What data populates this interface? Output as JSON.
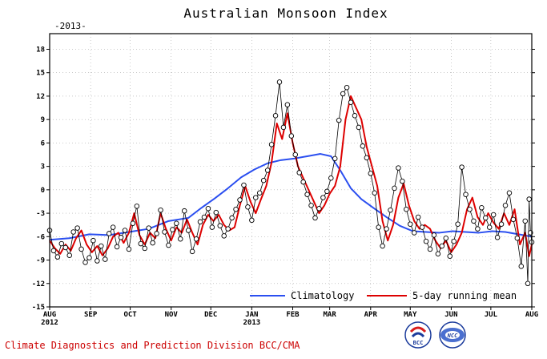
{
  "chart_data": {
    "type": "line",
    "title": "Australian Monsoon Index",
    "year_label": "-2013-",
    "xlabel": "",
    "ylabel": "",
    "ylim": [
      -15,
      20
    ],
    "y_ticks": [
      -15,
      -12,
      -9,
      -6,
      -3,
      0,
      3,
      6,
      9,
      12,
      15,
      18
    ],
    "x_ticks": [
      {
        "day": 0,
        "label": "AUG",
        "sub": "2012"
      },
      {
        "day": 31,
        "label": "SEP"
      },
      {
        "day": 61,
        "label": "OCT"
      },
      {
        "day": 92,
        "label": "NOV"
      },
      {
        "day": 122,
        "label": "DEC"
      },
      {
        "day": 153,
        "label": "JAN",
        "sub": "2013"
      },
      {
        "day": 184,
        "label": "FEB"
      },
      {
        "day": 212,
        "label": "MAR"
      },
      {
        "day": 243,
        "label": "APR"
      },
      {
        "day": 273,
        "label": "MAY"
      },
      {
        "day": 304,
        "label": "JUN"
      },
      {
        "day": 334,
        "label": "JUL"
      },
      {
        "day": 365,
        "label": "AUG"
      }
    ],
    "grid": true,
    "legend_position": "bottom-right",
    "daily_color": "#000000",
    "series": [
      {
        "name": "Climatology",
        "color": "#2b4ff0",
        "points": [
          [
            0,
            -6.4
          ],
          [
            15,
            -6.2
          ],
          [
            30,
            -5.7
          ],
          [
            45,
            -5.8
          ],
          [
            60,
            -5.4
          ],
          [
            75,
            -5.0
          ],
          [
            90,
            -4.0
          ],
          [
            105,
            -3.6
          ],
          [
            115,
            -2.3
          ],
          [
            125,
            -1.1
          ],
          [
            135,
            0.2
          ],
          [
            145,
            1.6
          ],
          [
            155,
            2.6
          ],
          [
            165,
            3.4
          ],
          [
            175,
            3.8
          ],
          [
            185,
            4.0
          ],
          [
            195,
            4.3
          ],
          [
            205,
            4.6
          ],
          [
            213,
            4.3
          ],
          [
            220,
            2.5
          ],
          [
            228,
            0.2
          ],
          [
            236,
            -1.2
          ],
          [
            245,
            -2.3
          ],
          [
            255,
            -3.5
          ],
          [
            265,
            -4.6
          ],
          [
            275,
            -5.3
          ],
          [
            285,
            -5.4
          ],
          [
            295,
            -5.5
          ],
          [
            305,
            -5.3
          ],
          [
            315,
            -5.4
          ],
          [
            325,
            -5.5
          ],
          [
            335,
            -5.3
          ],
          [
            345,
            -5.4
          ],
          [
            355,
            -5.7
          ],
          [
            365,
            -6.0
          ]
        ]
      },
      {
        "name": "5-day running mean",
        "color": "#dd0000",
        "points": [
          [
            0,
            -6.5
          ],
          [
            4,
            -7.5
          ],
          [
            8,
            -8.2
          ],
          [
            12,
            -7.0
          ],
          [
            16,
            -7.8
          ],
          [
            20,
            -6.2
          ],
          [
            24,
            -5.2
          ],
          [
            28,
            -7.0
          ],
          [
            32,
            -8.0
          ],
          [
            36,
            -7.2
          ],
          [
            40,
            -8.4
          ],
          [
            44,
            -7.5
          ],
          [
            48,
            -6.0
          ],
          [
            52,
            -5.5
          ],
          [
            56,
            -6.8
          ],
          [
            60,
            -5.5
          ],
          [
            64,
            -3.0
          ],
          [
            68,
            -5.8
          ],
          [
            72,
            -7.0
          ],
          [
            76,
            -5.5
          ],
          [
            80,
            -6.2
          ],
          [
            84,
            -3.0
          ],
          [
            88,
            -5.0
          ],
          [
            92,
            -6.5
          ],
          [
            96,
            -4.8
          ],
          [
            100,
            -5.5
          ],
          [
            104,
            -3.8
          ],
          [
            108,
            -5.5
          ],
          [
            112,
            -7.0
          ],
          [
            116,
            -4.5
          ],
          [
            120,
            -3.2
          ],
          [
            124,
            -4.0
          ],
          [
            128,
            -3.2
          ],
          [
            132,
            -4.5
          ],
          [
            136,
            -5.2
          ],
          [
            140,
            -4.8
          ],
          [
            144,
            -2.0
          ],
          [
            148,
            0.5
          ],
          [
            152,
            -1.5
          ],
          [
            156,
            -3.0
          ],
          [
            160,
            -1.2
          ],
          [
            164,
            0.5
          ],
          [
            168,
            3.5
          ],
          [
            172,
            8.5
          ],
          [
            176,
            6.5
          ],
          [
            180,
            9.8
          ],
          [
            184,
            6.0
          ],
          [
            188,
            3.0
          ],
          [
            192,
            1.5
          ],
          [
            196,
            0.0
          ],
          [
            200,
            -1.5
          ],
          [
            204,
            -3.0
          ],
          [
            208,
            -2.0
          ],
          [
            212,
            -0.5
          ],
          [
            216,
            0.5
          ],
          [
            220,
            3.0
          ],
          [
            224,
            9.0
          ],
          [
            228,
            12.0
          ],
          [
            232,
            10.5
          ],
          [
            236,
            9.0
          ],
          [
            240,
            5.5
          ],
          [
            244,
            3.0
          ],
          [
            248,
            0.5
          ],
          [
            252,
            -4.0
          ],
          [
            256,
            -6.5
          ],
          [
            260,
            -4.5
          ],
          [
            264,
            -1.0
          ],
          [
            268,
            0.8
          ],
          [
            272,
            -2.0
          ],
          [
            276,
            -4.0
          ],
          [
            280,
            -5.0
          ],
          [
            284,
            -4.5
          ],
          [
            288,
            -5.0
          ],
          [
            292,
            -6.5
          ],
          [
            296,
            -7.5
          ],
          [
            300,
            -6.5
          ],
          [
            304,
            -8.0
          ],
          [
            308,
            -7.0
          ],
          [
            312,
            -5.5
          ],
          [
            316,
            -2.5
          ],
          [
            320,
            -1.0
          ],
          [
            324,
            -3.5
          ],
          [
            328,
            -4.5
          ],
          [
            332,
            -3.0
          ],
          [
            336,
            -4.2
          ],
          [
            340,
            -5.0
          ],
          [
            344,
            -3.0
          ],
          [
            348,
            -4.5
          ],
          [
            352,
            -2.5
          ],
          [
            356,
            -7.0
          ],
          [
            360,
            -5.5
          ],
          [
            363,
            -8.5
          ],
          [
            365,
            -7.0
          ]
        ]
      }
    ],
    "daily_points": [
      [
        0,
        -5.2
      ],
      [
        3,
        -7.8
      ],
      [
        6,
        -8.6
      ],
      [
        9,
        -6.9
      ],
      [
        12,
        -7.4
      ],
      [
        15,
        -8.4
      ],
      [
        18,
        -5.4
      ],
      [
        21,
        -4.9
      ],
      [
        24,
        -7.6
      ],
      [
        27,
        -9.3
      ],
      [
        30,
        -8.7
      ],
      [
        33,
        -6.5
      ],
      [
        36,
        -9.1
      ],
      [
        39,
        -7.2
      ],
      [
        42,
        -8.9
      ],
      [
        45,
        -5.6
      ],
      [
        48,
        -4.8
      ],
      [
        51,
        -7.3
      ],
      [
        54,
        -6.1
      ],
      [
        57,
        -5.2
      ],
      [
        60,
        -7.6
      ],
      [
        63,
        -4.3
      ],
      [
        66,
        -2.1
      ],
      [
        69,
        -6.9
      ],
      [
        72,
        -7.5
      ],
      [
        75,
        -4.9
      ],
      [
        78,
        -6.8
      ],
      [
        81,
        -5.6
      ],
      [
        84,
        -2.6
      ],
      [
        87,
        -5.4
      ],
      [
        90,
        -7.1
      ],
      [
        93,
        -5.1
      ],
      [
        96,
        -4.3
      ],
      [
        99,
        -6.3
      ],
      [
        102,
        -2.7
      ],
      [
        105,
        -5.2
      ],
      [
        108,
        -7.9
      ],
      [
        111,
        -6.3
      ],
      [
        114,
        -4.1
      ],
      [
        117,
        -3.5
      ],
      [
        120,
        -2.4
      ],
      [
        123,
        -4.8
      ],
      [
        126,
        -2.9
      ],
      [
        129,
        -4.6
      ],
      [
        132,
        -5.9
      ],
      [
        135,
        -5.0
      ],
      [
        138,
        -3.6
      ],
      [
        141,
        -2.5
      ],
      [
        144,
        -1.3
      ],
      [
        147,
        0.6
      ],
      [
        150,
        -2.2
      ],
      [
        153,
        -3.9
      ],
      [
        156,
        -1.0
      ],
      [
        159,
        -0.4
      ],
      [
        162,
        1.2
      ],
      [
        165,
        2.5
      ],
      [
        168,
        5.8
      ],
      [
        171,
        9.5
      ],
      [
        174,
        13.8
      ],
      [
        177,
        8.0
      ],
      [
        180,
        10.9
      ],
      [
        183,
        6.9
      ],
      [
        186,
        4.5
      ],
      [
        189,
        2.2
      ],
      [
        192,
        1.0
      ],
      [
        195,
        -0.6
      ],
      [
        198,
        -2.0
      ],
      [
        201,
        -3.6
      ],
      [
        204,
        -2.4
      ],
      [
        207,
        -1.0
      ],
      [
        210,
        -0.2
      ],
      [
        213,
        1.5
      ],
      [
        216,
        4.0
      ],
      [
        219,
        8.9
      ],
      [
        222,
        12.3
      ],
      [
        225,
        13.1
      ],
      [
        228,
        11.2
      ],
      [
        231,
        9.5
      ],
      [
        234,
        8.0
      ],
      [
        237,
        5.6
      ],
      [
        240,
        4.1
      ],
      [
        243,
        2.1
      ],
      [
        246,
        -0.4
      ],
      [
        249,
        -4.8
      ],
      [
        252,
        -7.2
      ],
      [
        255,
        -5.0
      ],
      [
        258,
        -2.6
      ],
      [
        261,
        0.2
      ],
      [
        264,
        2.8
      ],
      [
        267,
        1.1
      ],
      [
        270,
        -2.5
      ],
      [
        273,
        -4.4
      ],
      [
        276,
        -5.5
      ],
      [
        279,
        -3.5
      ],
      [
        282,
        -4.8
      ],
      [
        285,
        -6.6
      ],
      [
        288,
        -7.6
      ],
      [
        291,
        -5.8
      ],
      [
        294,
        -8.2
      ],
      [
        297,
        -7.2
      ],
      [
        300,
        -6.2
      ],
      [
        303,
        -8.5
      ],
      [
        306,
        -6.6
      ],
      [
        309,
        -4.4
      ],
      [
        312,
        2.9
      ],
      [
        315,
        -0.6
      ],
      [
        318,
        -2.5
      ],
      [
        321,
        -4.0
      ],
      [
        324,
        -5.0
      ],
      [
        327,
        -2.3
      ],
      [
        330,
        -3.6
      ],
      [
        333,
        -4.8
      ],
      [
        336,
        -3.2
      ],
      [
        339,
        -6.1
      ],
      [
        342,
        -4.4
      ],
      [
        345,
        -2.0
      ],
      [
        348,
        -0.4
      ],
      [
        351,
        -3.8
      ],
      [
        354,
        -6.2
      ],
      [
        357,
        -9.8
      ],
      [
        360,
        -4.0
      ],
      [
        362,
        -12.0
      ],
      [
        363,
        -1.2
      ],
      [
        364,
        -5.5
      ],
      [
        365,
        -6.7
      ]
    ]
  },
  "footer": {
    "division_text": "Climate Diagnostics and Prediction Division  BCC/CMA",
    "logo_left_text": "BCC",
    "logo_right_text": "NCC"
  }
}
